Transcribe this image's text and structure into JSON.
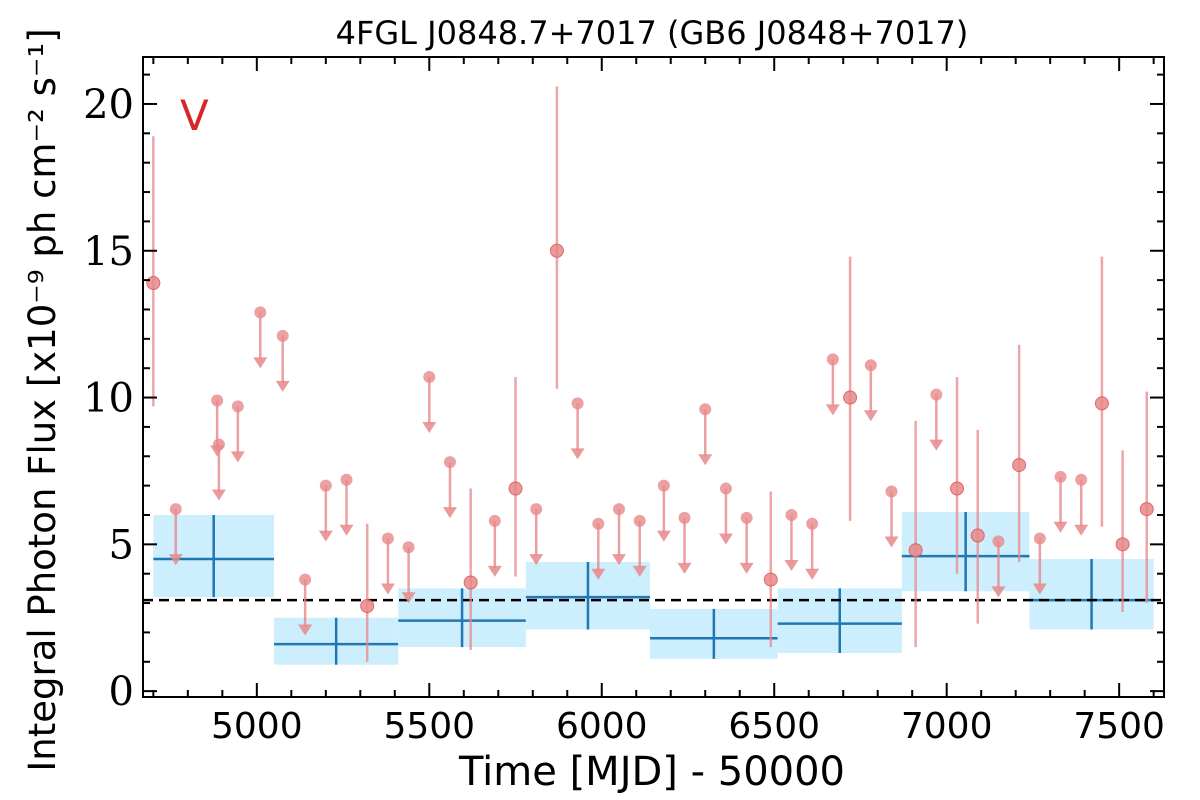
{
  "chart_data": {
    "type": "scatter",
    "title": "4FGL J0848.7+7017 (GB6 J0848+7017)",
    "xlabel": "Time [MJD] - 50000",
    "ylabel": "Integral Photon Flux [x10⁻⁹ ph cm⁻² s⁻¹]",
    "marker_label": "V",
    "xlim": [
      4670,
      7630
    ],
    "ylim": [
      -0.2,
      21.6
    ],
    "x_ticks": [
      5000,
      5500,
      6000,
      6500,
      7000,
      7500
    ],
    "y_ticks": [
      0,
      5,
      10,
      15,
      20
    ],
    "colors": {
      "points": "#e8888a",
      "upper_limits": "#e8888a",
      "bins_fill": "#cdeefd",
      "bins_line": "#1f77b4",
      "reference_line": "#000000",
      "marker_label": "#d62728"
    },
    "reference_flux": 3.1,
    "points": [
      {
        "x": 4700,
        "y": 13.9,
        "ylo": 9.7,
        "yhi": 18.9
      },
      {
        "x": 5320,
        "y": 2.9,
        "ylo": 1.0,
        "yhi": 5.7
      },
      {
        "x": 5620,
        "y": 3.7,
        "ylo": 1.4,
        "yhi": 6.9
      },
      {
        "x": 5750,
        "y": 6.9,
        "ylo": 3.9,
        "yhi": 10.7
      },
      {
        "x": 5870,
        "y": 15.0,
        "ylo": 10.3,
        "yhi": 20.6
      },
      {
        "x": 6490,
        "y": 3.8,
        "ylo": 1.5,
        "yhi": 6.8
      },
      {
        "x": 6720,
        "y": 10.0,
        "ylo": 5.8,
        "yhi": 14.8
      },
      {
        "x": 6910,
        "y": 4.8,
        "ylo": 1.5,
        "yhi": 9.2
      },
      {
        "x": 7030,
        "y": 6.9,
        "ylo": 4.0,
        "yhi": 10.7
      },
      {
        "x": 7090,
        "y": 5.3,
        "ylo": 2.3,
        "yhi": 8.9
      },
      {
        "x": 7210,
        "y": 7.7,
        "ylo": 4.4,
        "yhi": 11.8
      },
      {
        "x": 7450,
        "y": 9.8,
        "ylo": 5.6,
        "yhi": 14.8
      },
      {
        "x": 7510,
        "y": 5.0,
        "ylo": 2.7,
        "yhi": 8.2
      },
      {
        "x": 7580,
        "y": 6.2,
        "ylo": 3.0,
        "yhi": 10.2
      }
    ],
    "upper_limits": [
      {
        "x": 4765,
        "y": 6.2
      },
      {
        "x": 4885,
        "y": 9.9
      },
      {
        "x": 4890,
        "y": 8.4
      },
      {
        "x": 4945,
        "y": 9.7
      },
      {
        "x": 5010,
        "y": 12.9
      },
      {
        "x": 5075,
        "y": 12.1
      },
      {
        "x": 5140,
        "y": 3.8
      },
      {
        "x": 5200,
        "y": 7.0
      },
      {
        "x": 5260,
        "y": 7.2
      },
      {
        "x": 5380,
        "y": 5.2
      },
      {
        "x": 5440,
        "y": 4.9
      },
      {
        "x": 5500,
        "y": 10.7
      },
      {
        "x": 5560,
        "y": 7.8
      },
      {
        "x": 5690,
        "y": 5.8
      },
      {
        "x": 5810,
        "y": 6.2
      },
      {
        "x": 5930,
        "y": 9.8
      },
      {
        "x": 5990,
        "y": 5.7
      },
      {
        "x": 6050,
        "y": 6.2
      },
      {
        "x": 6110,
        "y": 5.8
      },
      {
        "x": 6180,
        "y": 7.0
      },
      {
        "x": 6240,
        "y": 5.9
      },
      {
        "x": 6300,
        "y": 9.6
      },
      {
        "x": 6360,
        "y": 6.9
      },
      {
        "x": 6420,
        "y": 5.9
      },
      {
        "x": 6550,
        "y": 6.0
      },
      {
        "x": 6610,
        "y": 5.7
      },
      {
        "x": 6670,
        "y": 11.3
      },
      {
        "x": 6780,
        "y": 11.1
      },
      {
        "x": 6840,
        "y": 6.8
      },
      {
        "x": 6970,
        "y": 10.1
      },
      {
        "x": 7150,
        "y": 5.1
      },
      {
        "x": 7270,
        "y": 5.2
      },
      {
        "x": 7330,
        "y": 7.3
      },
      {
        "x": 7390,
        "y": 7.2
      }
    ],
    "bins": [
      {
        "x0": 4700,
        "x1": 5050,
        "y": 4.5,
        "ylo": 3.2,
        "yhi": 6.0
      },
      {
        "x0": 5050,
        "x1": 5410,
        "y": 1.6,
        "ylo": 0.9,
        "yhi": 2.5
      },
      {
        "x0": 5410,
        "x1": 5780,
        "y": 2.4,
        "ylo": 1.5,
        "yhi": 3.5
      },
      {
        "x0": 5780,
        "x1": 6140,
        "y": 3.2,
        "ylo": 2.1,
        "yhi": 4.4
      },
      {
        "x0": 6140,
        "x1": 6510,
        "y": 1.8,
        "ylo": 1.1,
        "yhi": 2.8
      },
      {
        "x0": 6510,
        "x1": 6870,
        "y": 2.3,
        "ylo": 1.3,
        "yhi": 3.5
      },
      {
        "x0": 6870,
        "x1": 7240,
        "y": 4.6,
        "ylo": 3.4,
        "yhi": 6.1
      },
      {
        "x0": 7240,
        "x1": 7600,
        "y": 3.1,
        "ylo": 2.1,
        "yhi": 4.5
      }
    ]
  }
}
